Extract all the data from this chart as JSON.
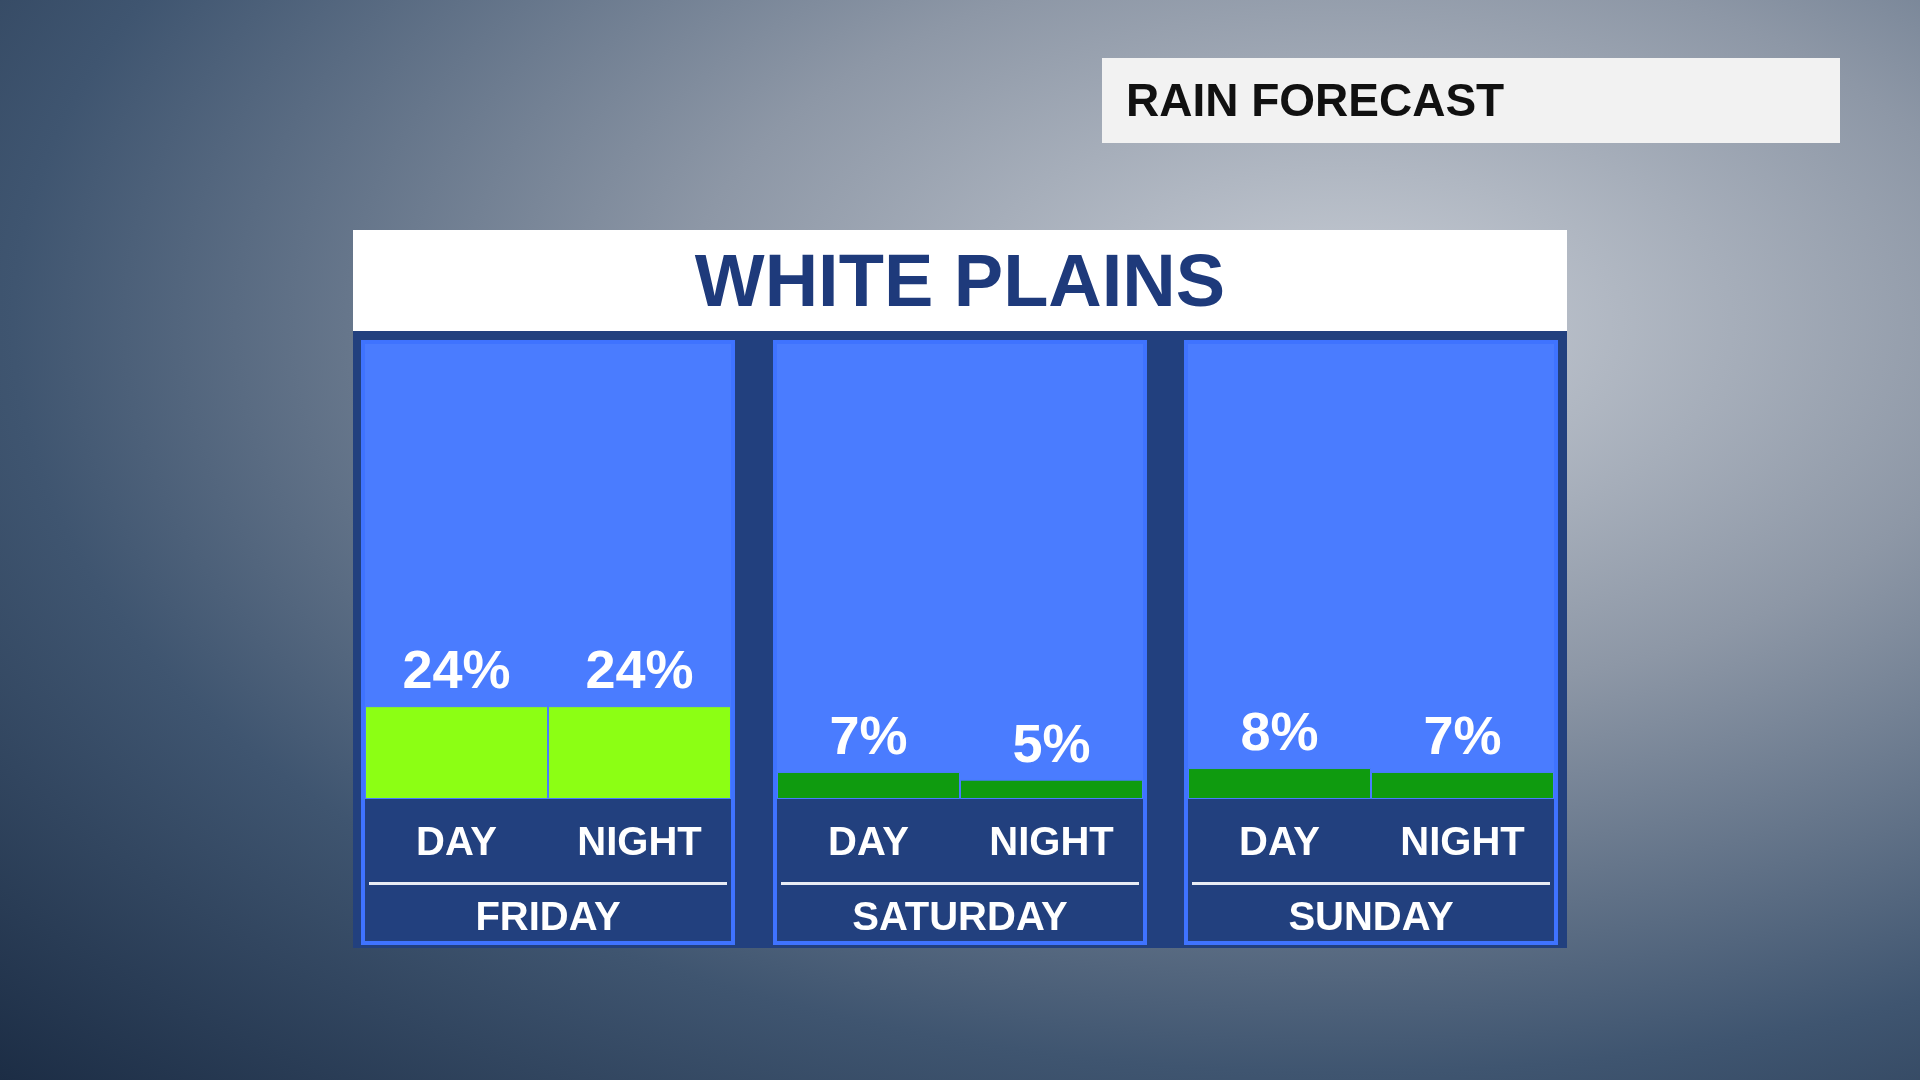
{
  "chart_data": [
    {
      "type": "other",
      "title": "RAIN FORECAST",
      "subtitle": "WHITE PLAINS"
    },
    {
      "type": "bar",
      "xlabel": "FRIDAY",
      "categories": [
        "DAY",
        "NIGHT"
      ],
      "values": [
        24,
        24
      ],
      "colors": [
        "#8cff14",
        "#8cff14"
      ],
      "value_labels": [
        "24%",
        "24%"
      ]
    },
    {
      "type": "bar",
      "xlabel": "SATURDAY",
      "categories": [
        "DAY",
        "NIGHT"
      ],
      "values": [
        7,
        5
      ],
      "colors": [
        "#0f9b0f",
        "#0f9b0f"
      ],
      "value_labels": [
        "7%",
        "5%"
      ]
    },
    {
      "type": "bar",
      "xlabel": "SUNDAY",
      "categories": [
        "DAY",
        "NIGHT"
      ],
      "values": [
        8,
        7
      ],
      "colors": [
        "#0f9b0f",
        "#0f9b0f"
      ],
      "value_labels": [
        "8%",
        "7%"
      ]
    }
  ]
}
